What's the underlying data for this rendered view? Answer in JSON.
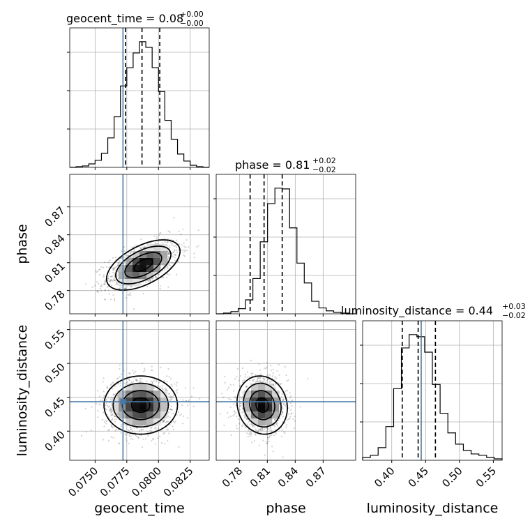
{
  "chart_data": {
    "type": "corner",
    "truth_color": "#4878a8",
    "params": [
      {
        "name": "geocent_time",
        "label": "geocent_time",
        "title_name": "geocent_time",
        "title_value": "0.08",
        "title_plus": "+0.00",
        "title_minus": "−0.00",
        "range": [
          0.073,
          0.084
        ],
        "ticks": [
          0.075,
          0.0775,
          0.08,
          0.0825
        ],
        "tick_labels": [
          "0.0750",
          "0.0775",
          "0.0800",
          "0.0825"
        ],
        "truth": 0.0772,
        "quantiles": [
          0.0774,
          0.0787,
          0.0801
        ],
        "hist_counts": [
          0,
          1,
          2,
          5,
          10,
          20,
          42,
          72,
          116,
          142,
          163,
          179,
          171,
          142,
          108,
          67,
          40,
          19,
          9,
          3,
          1,
          0
        ]
      },
      {
        "name": "phase",
        "label": "phase",
        "title_name": "phase",
        "title_value": "0.81",
        "title_plus": "+0.02",
        "title_minus": "−0.02",
        "range": [
          0.755,
          0.905
        ],
        "ticks": [
          0.78,
          0.81,
          0.84,
          0.87
        ],
        "tick_labels": [
          "0.78",
          "0.81",
          "0.84",
          "0.87"
        ],
        "truth": null,
        "quantiles": [
          0.7915,
          0.8065,
          0.826
        ],
        "hist_counts": [
          0,
          1,
          3,
          7,
          19,
          48,
          98,
          150,
          171,
          170,
          117,
          69,
          42,
          17,
          8,
          4,
          2,
          1,
          0
        ]
      },
      {
        "name": "luminosity_distance",
        "label": "luminosity_distance",
        "title_name": "luminosity_distance",
        "title_value": "0.44",
        "title_plus": "+0.03",
        "title_minus": "−0.02",
        "range": [
          0.357,
          0.563
        ],
        "ticks": [
          0.4,
          0.45,
          0.5,
          0.55
        ],
        "tick_labels": [
          "0.40",
          "0.45",
          "0.50",
          "0.55"
        ],
        "truth": 0.4435,
        "quantiles": [
          0.4155,
          0.439,
          0.4645
        ],
        "hist_counts": [
          4,
          7,
          18,
          48,
          102,
          160,
          179,
          176,
          154,
          108,
          67,
          39,
          23,
          14,
          9,
          7,
          4,
          2
        ]
      }
    ],
    "pairs": [
      {
        "x": "geocent_time",
        "y": "phase",
        "mean": [
          0.0788,
          0.8075
        ],
        "sd": [
          0.00145,
          0.0135
        ],
        "corr": 0.55,
        "truth_x": 0.0772,
        "truth_y": null
      },
      {
        "x": "geocent_time",
        "y": "luminosity_distance",
        "mean": [
          0.0786,
          0.4385
        ],
        "sd": [
          0.00145,
          0.0215
        ],
        "corr": 0.0,
        "truth_x": 0.0772,
        "truth_y": 0.4435
      },
      {
        "x": "phase",
        "y": "luminosity_distance",
        "mean": [
          0.8045,
          0.4385
        ],
        "sd": [
          0.0135,
          0.0215
        ],
        "corr": -0.1,
        "truth_x": null,
        "truth_y": 0.4435
      }
    ],
    "contour_levels_sigma": [
      0.5,
      1.0,
      1.5,
      2.0
    ],
    "grid": true
  }
}
